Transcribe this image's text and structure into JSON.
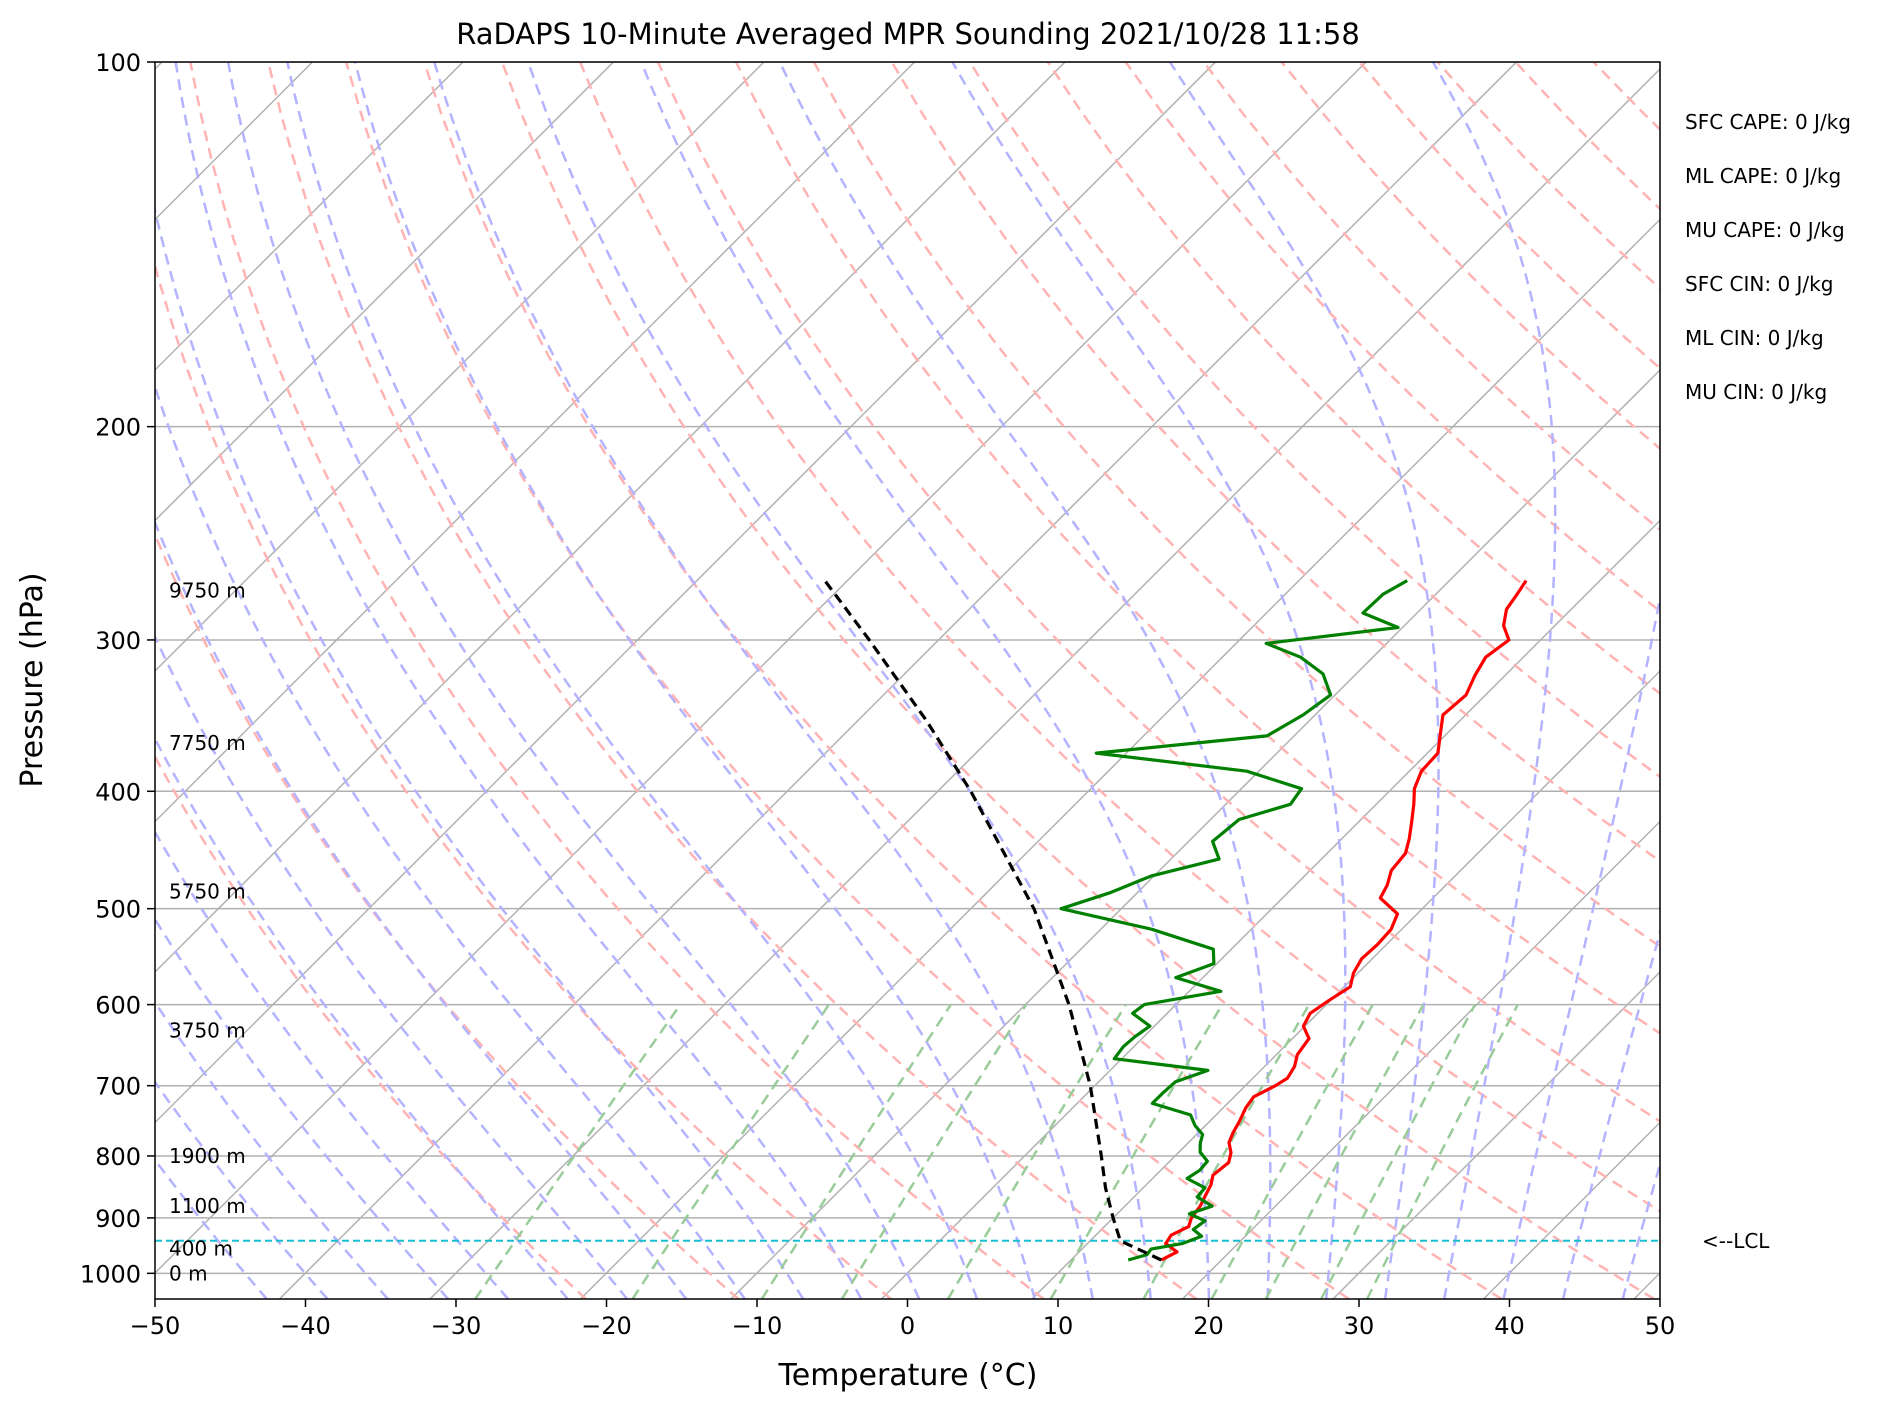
{
  "chart_data": {
    "type": "line",
    "subtype": "skew-t log-p sounding",
    "title": "RaDAPS 10-Minute Averaged MPR Sounding 2021/10/28 11:58",
    "xlabel": "Temperature (°C)",
    "ylabel": "Pressure (hPa)",
    "xlim": [
      -50,
      50
    ],
    "ylim": [
      1050,
      100
    ],
    "y_scale": "log",
    "grid": true,
    "x_ticks": [
      "−50",
      "−40",
      "−30",
      "−20",
      "−10",
      "0",
      "10",
      "20",
      "30",
      "40",
      "50"
    ],
    "y_ticks": [
      {
        "p": 100,
        "label": "100"
      },
      {
        "p": 200,
        "label": "200"
      },
      {
        "p": 300,
        "label": "300"
      },
      {
        "p": 400,
        "label": "400"
      },
      {
        "p": 500,
        "label": "500"
      },
      {
        "p": 600,
        "label": "600"
      },
      {
        "p": 700,
        "label": "700"
      },
      {
        "p": 800,
        "label": "800"
      },
      {
        "p": 900,
        "label": "900"
      },
      {
        "p": 1000,
        "label": "1000"
      }
    ],
    "height_labels": [
      {
        "p": 1000,
        "label": "0 m"
      },
      {
        "p": 954,
        "label": "400 m"
      },
      {
        "p": 880,
        "label": "1100 m"
      },
      {
        "p": 800,
        "label": "1900 m"
      },
      {
        "p": 630,
        "label": "3750 m"
      },
      {
        "p": 484,
        "label": "5750 m"
      },
      {
        "p": 365,
        "label": "7750 m"
      },
      {
        "p": 273,
        "label": "9750 m"
      }
    ],
    "indices": [
      {
        "label": "SFC CAPE: 0 J/kg"
      },
      {
        "label": "ML CAPE: 0 J/kg"
      },
      {
        "label": "MU CAPE: 0 J/kg"
      },
      {
        "label": "SFC CIN: 0 J/kg"
      },
      {
        "label": "ML CIN: 0 J/kg"
      },
      {
        "label": "MU CIN: 0 J/kg"
      }
    ],
    "lcl": {
      "p": 940,
      "label": "<--LCL",
      "color": "#17becf"
    },
    "colors": {
      "temperature": "#ff0000",
      "dewpoint": "#008000",
      "parcel": "#000000",
      "isotherm": "#b0b0b0",
      "dry_adiabat": "#ffb3b3",
      "moist_adiabat": "#b3b3ff",
      "mixing_ratio": "#99cc99"
    },
    "series": [
      {
        "key": "temperature",
        "points": [
          {
            "p": 975,
            "t": 16.0
          },
          {
            "p": 960,
            "t": 16.5
          },
          {
            "p": 945,
            "t": 15.2
          },
          {
            "p": 930,
            "t": 15.0
          },
          {
            "p": 915,
            "t": 15.6
          },
          {
            "p": 900,
            "t": 15.2
          },
          {
            "p": 880,
            "t": 15.0
          },
          {
            "p": 860,
            "t": 14.6
          },
          {
            "p": 845,
            "t": 14.3
          },
          {
            "p": 830,
            "t": 13.8
          },
          {
            "p": 810,
            "t": 14.0
          },
          {
            "p": 795,
            "t": 13.5
          },
          {
            "p": 780,
            "t": 12.7
          },
          {
            "p": 765,
            "t": 12.3
          },
          {
            "p": 750,
            "t": 12.0
          },
          {
            "p": 730,
            "t": 11.5
          },
          {
            "p": 715,
            "t": 11.3
          },
          {
            "p": 700,
            "t": 12.0
          },
          {
            "p": 690,
            "t": 12.3
          },
          {
            "p": 675,
            "t": 12.0
          },
          {
            "p": 660,
            "t": 11.4
          },
          {
            "p": 640,
            "t": 11.1
          },
          {
            "p": 625,
            "t": 9.9
          },
          {
            "p": 610,
            "t": 9.5
          },
          {
            "p": 595,
            "t": 9.9
          },
          {
            "p": 580,
            "t": 10.4
          },
          {
            "p": 565,
            "t": 9.7
          },
          {
            "p": 550,
            "t": 9.3
          },
          {
            "p": 535,
            "t": 9.4
          },
          {
            "p": 520,
            "t": 9.3
          },
          {
            "p": 505,
            "t": 8.7
          },
          {
            "p": 490,
            "t": 6.5
          },
          {
            "p": 478,
            "t": 6.1
          },
          {
            "p": 465,
            "t": 5.4
          },
          {
            "p": 450,
            "t": 5.2
          },
          {
            "p": 438,
            "t": 4.5
          },
          {
            "p": 425,
            "t": 3.6
          },
          {
            "p": 410,
            "t": 2.5
          },
          {
            "p": 398,
            "t": 1.5
          },
          {
            "p": 385,
            "t": 0.8
          },
          {
            "p": 372,
            "t": 0.7
          },
          {
            "p": 360,
            "t": -0.3
          },
          {
            "p": 346,
            "t": -1.5
          },
          {
            "p": 333,
            "t": -1.3
          },
          {
            "p": 321,
            "t": -2.0
          },
          {
            "p": 310,
            "t": -2.5
          },
          {
            "p": 300,
            "t": -2.1
          },
          {
            "p": 292,
            "t": -3.4
          },
          {
            "p": 283,
            "t": -4.3
          },
          {
            "p": 275,
            "t": -4.6
          },
          {
            "p": 268,
            "t": -4.9
          }
        ]
      },
      {
        "key": "dewpoint",
        "points": [
          {
            "p": 975,
            "t": 13.8
          },
          {
            "p": 965,
            "t": 14.7
          },
          {
            "p": 955,
            "t": 14.6
          },
          {
            "p": 945,
            "t": 16.3
          },
          {
            "p": 932,
            "t": 17.1
          },
          {
            "p": 920,
            "t": 16.1
          },
          {
            "p": 905,
            "t": 16.3
          },
          {
            "p": 893,
            "t": 14.8
          },
          {
            "p": 880,
            "t": 15.8
          },
          {
            "p": 865,
            "t": 14.2
          },
          {
            "p": 850,
            "t": 14.1
          },
          {
            "p": 835,
            "t": 12.3
          },
          {
            "p": 822,
            "t": 12.6
          },
          {
            "p": 808,
            "t": 12.5
          },
          {
            "p": 794,
            "t": 11.4
          },
          {
            "p": 780,
            "t": 10.8
          },
          {
            "p": 768,
            "t": 10.4
          },
          {
            "p": 755,
            "t": 9.3
          },
          {
            "p": 740,
            "t": 8.3
          },
          {
            "p": 724,
            "t": 5.0
          },
          {
            "p": 710,
            "t": 5.0
          },
          {
            "p": 695,
            "t": 5.1
          },
          {
            "p": 680,
            "t": 6.5
          },
          {
            "p": 665,
            "t": -0.5
          },
          {
            "p": 650,
            "t": -0.7
          },
          {
            "p": 638,
            "t": -0.6
          },
          {
            "p": 625,
            "t": -0.3
          },
          {
            "p": 610,
            "t": -2.3
          },
          {
            "p": 600,
            "t": -2.1
          },
          {
            "p": 585,
            "t": 2.1
          },
          {
            "p": 570,
            "t": -1.8
          },
          {
            "p": 555,
            "t": -0.2
          },
          {
            "p": 540,
            "t": -1.2
          },
          {
            "p": 520,
            "t": -6.6
          },
          {
            "p": 500,
            "t": -14.0
          },
          {
            "p": 485,
            "t": -11.8
          },
          {
            "p": 470,
            "t": -10.2
          },
          {
            "p": 455,
            "t": -6.8
          },
          {
            "p": 440,
            "t": -8.4
          },
          {
            "p": 422,
            "t": -8.1
          },
          {
            "p": 410,
            "t": -5.7
          },
          {
            "p": 398,
            "t": -6.0
          },
          {
            "p": 385,
            "t": -10.8
          },
          {
            "p": 372,
            "t": -22.0
          },
          {
            "p": 360,
            "t": -11.8
          },
          {
            "p": 346,
            "t": -10.8
          },
          {
            "p": 333,
            "t": -10.3
          },
          {
            "p": 320,
            "t": -12.2
          },
          {
            "p": 310,
            "t": -14.8
          },
          {
            "p": 302,
            "t": -18.0
          },
          {
            "p": 293,
            "t": -10.3
          },
          {
            "p": 285,
            "t": -13.6
          },
          {
            "p": 275,
            "t": -13.5
          },
          {
            "p": 268,
            "t": -12.8
          }
        ]
      },
      {
        "key": "parcel",
        "points": [
          {
            "p": 975,
            "t": 16.0
          },
          {
            "p": 940,
            "t": 12.0
          },
          {
            "p": 900,
            "t": 10.0
          },
          {
            "p": 850,
            "t": 7.5
          },
          {
            "p": 800,
            "t": 5.1
          },
          {
            "p": 700,
            "t": -0.3
          },
          {
            "p": 600,
            "t": -7.1
          },
          {
            "p": 500,
            "t": -15.8
          },
          {
            "p": 400,
            "t": -27.8
          },
          {
            "p": 350,
            "t": -35.4
          },
          {
            "p": 300,
            "t": -44.6
          },
          {
            "p": 268,
            "t": -51.5
          }
        ]
      }
    ]
  }
}
